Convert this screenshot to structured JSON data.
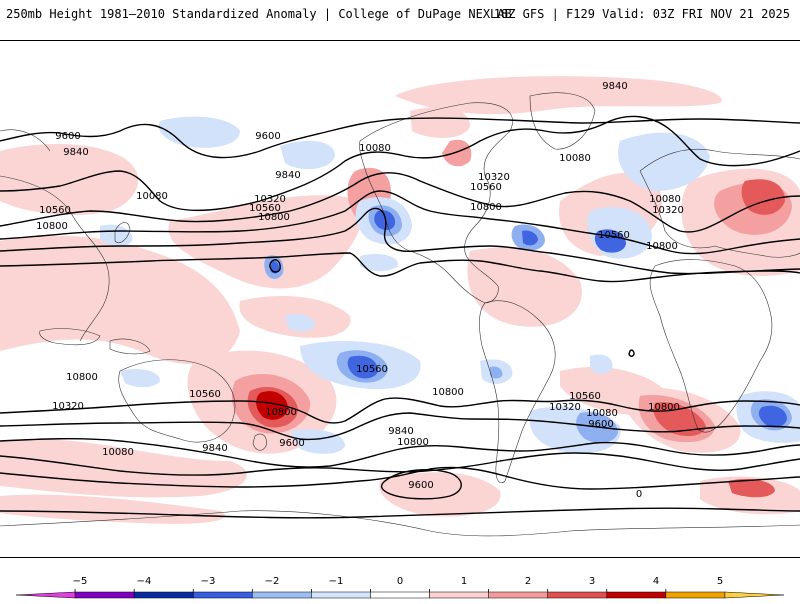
{
  "header": {
    "title": "250mb Height 1981–2010 Standardized Anomaly | College of DuPage NEXLAB",
    "run_info": "18Z GFS | F129 Valid: 03Z FRI NOV 21 2025"
  },
  "map": {
    "description_type": "global equirectangular map",
    "contour_labels": [
      {
        "id": "c1",
        "text": "9840"
      },
      {
        "id": "c2",
        "text": "9600"
      },
      {
        "id": "c3",
        "text": "9840"
      },
      {
        "id": "c4",
        "text": "9600"
      },
      {
        "id": "c5",
        "text": "9840"
      },
      {
        "id": "c6",
        "text": "10080"
      },
      {
        "id": "c7",
        "text": "10560"
      },
      {
        "id": "c8",
        "text": "10800"
      },
      {
        "id": "c9",
        "text": "10320"
      },
      {
        "id": "c10",
        "text": "10560"
      },
      {
        "id": "c11",
        "text": "10800"
      },
      {
        "id": "c12",
        "text": "10080"
      },
      {
        "id": "c13",
        "text": "10320"
      },
      {
        "id": "c14",
        "text": "10560"
      },
      {
        "id": "c15",
        "text": "10800"
      },
      {
        "id": "c16",
        "text": "10080"
      },
      {
        "id": "c17",
        "text": "10080"
      },
      {
        "id": "c18",
        "text": "10320"
      },
      {
        "id": "c19",
        "text": "10560"
      },
      {
        "id": "c20",
        "text": "10800"
      },
      {
        "id": "c21",
        "text": "10800"
      },
      {
        "id": "c22",
        "text": "10560"
      },
      {
        "id": "c23",
        "text": "10800"
      },
      {
        "id": "c24",
        "text": "10560"
      },
      {
        "id": "c25",
        "text": "10800"
      },
      {
        "id": "c26",
        "text": "10320"
      },
      {
        "id": "c27",
        "text": "10080"
      },
      {
        "id": "c28",
        "text": "9840"
      },
      {
        "id": "c29",
        "text": "9600"
      },
      {
        "id": "c30",
        "text": "10560"
      },
      {
        "id": "c31",
        "text": "10800"
      },
      {
        "id": "c32",
        "text": "10320"
      },
      {
        "id": "c33",
        "text": "10080"
      },
      {
        "id": "c34",
        "text": "9840"
      },
      {
        "id": "c35",
        "text": "10800"
      },
      {
        "id": "c36",
        "text": "9600"
      },
      {
        "id": "c37",
        "text": "9600"
      },
      {
        "id": "c38",
        "text": "0"
      }
    ]
  },
  "colorbar": {
    "ticks": [
      "−5",
      "−4",
      "−3",
      "−2",
      "−1",
      "0",
      "1",
      "2",
      "3",
      "4",
      "5"
    ],
    "colors": [
      "#e040e0",
      "#8000c0",
      "#0a2aa0",
      "#3a5ee0",
      "#9cbcf4",
      "#d4e4fc",
      "#ffffff",
      "#fcd0d0",
      "#f49a9a",
      "#e05050",
      "#c00000",
      "#f0a000",
      "#ffd040"
    ],
    "min": -6,
    "max": 6
  },
  "colors": {
    "neg1": "#d2e2fa",
    "neg2": "#8fb0f0",
    "neg3": "#3f66e0",
    "pos1": "#fbd4d4",
    "pos2": "#f4a0a0",
    "pos3": "#e45a5a",
    "pos4": "#c20000"
  }
}
